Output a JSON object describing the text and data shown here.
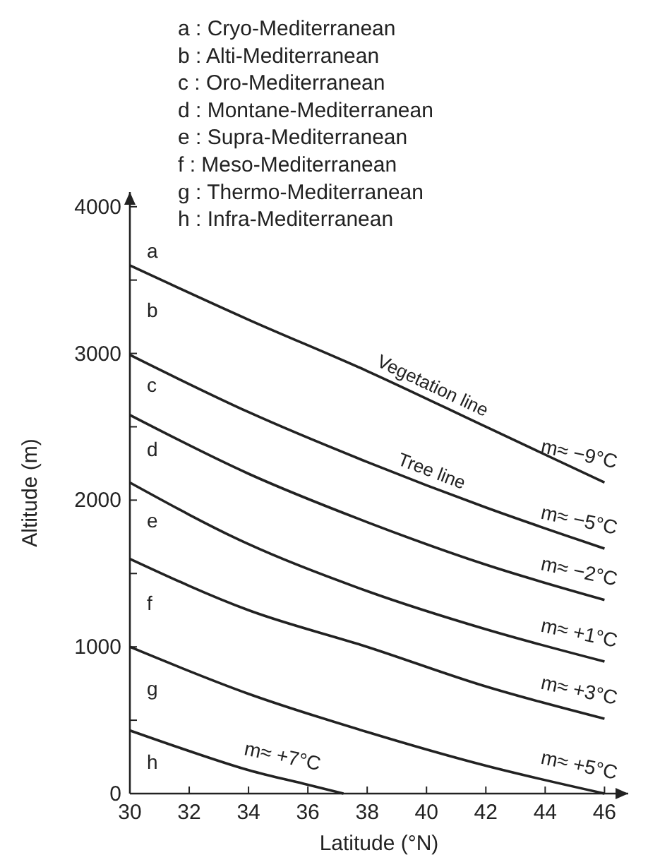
{
  "chart_data": {
    "type": "line",
    "xlabel": "Latitude (°N)",
    "ylabel": "Altitude (m)",
    "xlim": [
      30,
      46.8
    ],
    "ylim": [
      0,
      4100
    ],
    "xticks": [
      30,
      32,
      34,
      36,
      38,
      40,
      42,
      44,
      46
    ],
    "yticks": [
      0,
      {
        "value": 500,
        "label": null
      },
      1000,
      {
        "value": 1500,
        "label": null
      },
      2000,
      {
        "value": 2500,
        "label": null
      },
      3000,
      {
        "value": 3500,
        "label": null
      },
      4000
    ],
    "grid": false,
    "marker": "none",
    "line_style": "solid",
    "series": [
      {
        "name": "Vegetation line",
        "color": "#222222",
        "x": [
          30,
          34,
          38,
          42,
          46
        ],
        "values": [
          3600,
          3230,
          2880,
          2500,
          2120
        ]
      },
      {
        "name": "Tree line",
        "color": "#222222",
        "x": [
          30,
          34,
          38,
          42,
          46
        ],
        "values": [
          2990,
          2600,
          2260,
          1950,
          1670
        ]
      },
      {
        "color": "#222222",
        "x": [
          30,
          34,
          38,
          42,
          46
        ],
        "values": [
          2580,
          2180,
          1850,
          1560,
          1320
        ]
      },
      {
        "color": "#222222",
        "x": [
          30,
          34,
          38,
          42,
          46
        ],
        "values": [
          2120,
          1700,
          1380,
          1120,
          900
        ]
      },
      {
        "color": "#222222",
        "x": [
          30,
          34,
          38,
          42,
          46
        ],
        "values": [
          1600,
          1250,
          1000,
          730,
          510
        ]
      },
      {
        "color": "#222222",
        "x": [
          30,
          34,
          38,
          42,
          46
        ],
        "values": [
          1000,
          680,
          420,
          190,
          0
        ]
      },
      {
        "color": "#222222",
        "x": [
          30,
          32,
          34,
          36,
          37.2
        ],
        "values": [
          430,
          290,
          160,
          60,
          0
        ]
      }
    ],
    "annotations": [
      "a : Cryo-Mediterranean",
      "b : Alti-Mediterranean",
      "c : Oro-Mediterranean",
      "d : Montane-Mediterranean",
      "e : Supra-Mediterranean",
      "f : Meso-Mediterranean",
      "g : Thermo-Mediterranean",
      "h : Infra-Mediterranean",
      "a",
      "b",
      "c",
      "d",
      "e",
      "f",
      "g",
      "h",
      "m≈ −9°C",
      "m≈ −5°C",
      "m≈ −2°C",
      "m≈ +1°C",
      "m≈ +3°C",
      "m≈ +5°C",
      "m≈ +7°C"
    ]
  }
}
